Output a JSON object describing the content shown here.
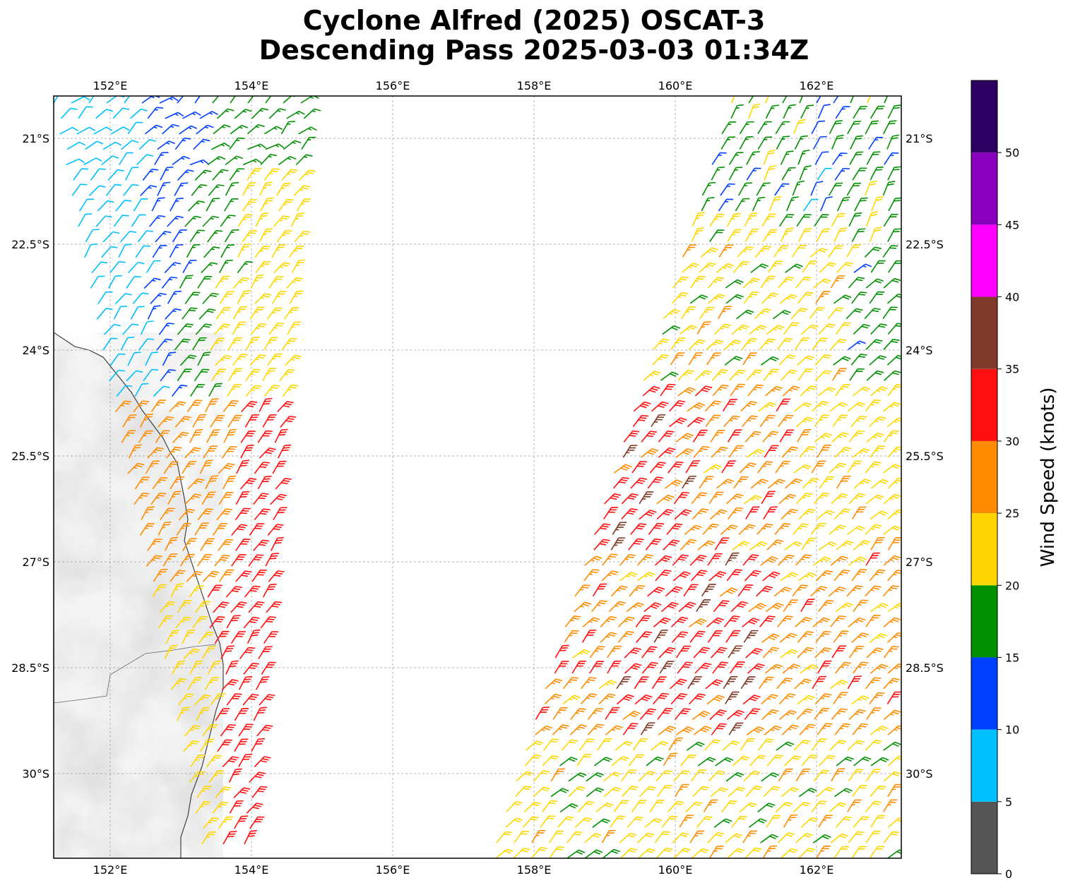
{
  "title_line1": "Cyclone Alfred (2025) OSCAT-3",
  "title_line2": "Descending Pass 2025-03-03 01:34Z",
  "map": {
    "lon_range": [
      151.2,
      163.2
    ],
    "lat_range": [
      -20.4,
      -31.2
    ],
    "lon_ticks": [
      152,
      154,
      156,
      158,
      160,
      162
    ],
    "lon_tick_labels": [
      "152°E",
      "154°E",
      "156°E",
      "158°E",
      "160°E",
      "162°E"
    ],
    "lat_ticks": [
      -21,
      -22.5,
      -24,
      -25.5,
      -27,
      -28.5,
      -30
    ],
    "lat_tick_labels": [
      "21°S",
      "22.5°S",
      "24°S",
      "25.5°S",
      "27°S",
      "28.5°S",
      "30°S"
    ],
    "gridlines": true,
    "land_shading": "grayscale terrain"
  },
  "colorbar": {
    "label": "Wind Speed (knots)",
    "bins": [
      {
        "min": 0,
        "max": 5,
        "color": "#555555"
      },
      {
        "min": 5,
        "max": 10,
        "color": "#00bfff"
      },
      {
        "min": 10,
        "max": 15,
        "color": "#0040ff"
      },
      {
        "min": 15,
        "max": 20,
        "color": "#009000"
      },
      {
        "min": 20,
        "max": 25,
        "color": "#ffd700"
      },
      {
        "min": 25,
        "max": 30,
        "color": "#ff8c00"
      },
      {
        "min": 30,
        "max": 35,
        "color": "#ff1010"
      },
      {
        "min": 35,
        "max": 40,
        "color": "#7f3b2a"
      },
      {
        "min": 40,
        "max": 45,
        "color": "#ff00ff"
      },
      {
        "min": 45,
        "max": 50,
        "color": "#8800bb"
      },
      {
        "min": 50,
        "max": 55,
        "color": "#2a0060"
      }
    ],
    "tick_labels": [
      "0",
      "5",
      "10",
      "15",
      "20",
      "25",
      "30",
      "35",
      "40",
      "45",
      "50"
    ]
  },
  "swaths": [
    {
      "name": "west",
      "lat_start": -20.5,
      "lat_end": -31.0,
      "lon_left_top": 151.2,
      "lon_right_top": 154.7,
      "lon_left_bottom": 153.3,
      "lon_right_bottom": 153.9
    },
    {
      "name": "east",
      "lat_start": -20.5,
      "lat_end": -31.2,
      "lon_left_top": 160.8,
      "lon_right_top": 163.2,
      "lon_left_bottom": 157.4,
      "lon_right_bottom": 163.2
    }
  ]
}
